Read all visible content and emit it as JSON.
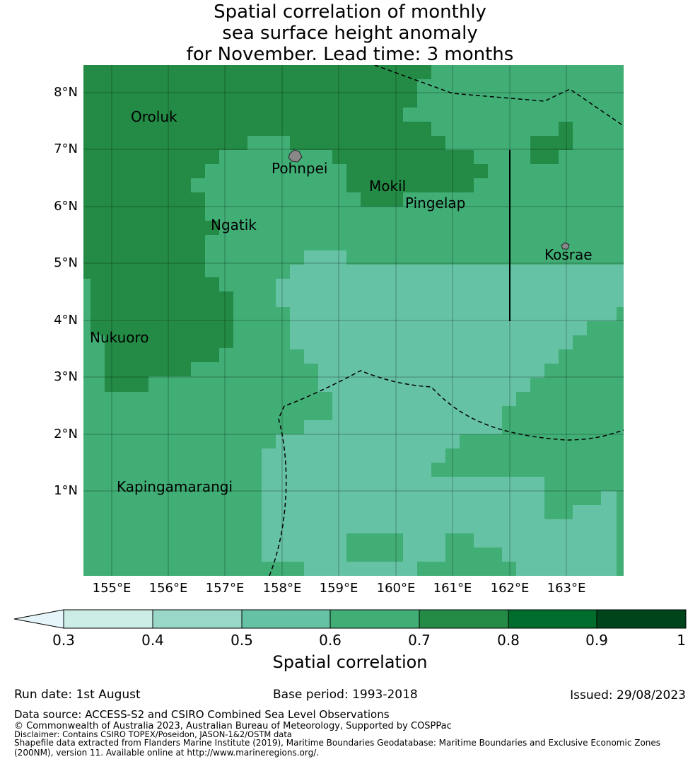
{
  "title_lines": [
    "Spatial correlation of monthly",
    "sea surface height anomaly",
    "for November. Lead time: 3 months"
  ],
  "lat_labels": [
    "8°N",
    "7°N",
    "6°N",
    "5°N",
    "4°N",
    "3°N",
    "2°N",
    "1°N"
  ],
  "lon_labels": [
    "155°E",
    "156°E",
    "157°E",
    "158°E",
    "159°E",
    "160°E",
    "161°E",
    "162°E",
    "163°E"
  ],
  "places": {
    "oroluk": "Oroluk",
    "pohnpei": "Pohnpei",
    "mokil": "Mokil",
    "pingelap": "Pingelap",
    "ngatik": "Ngatik",
    "kosrae": "Kosrae",
    "nukuoro": "Nukuoro",
    "kapingamarangi": "Kapingamarangi"
  },
  "colorbar": {
    "label": "Spatial correlation",
    "ticks": [
      "0.3",
      "0.4",
      "0.5",
      "0.6",
      "0.7",
      "0.8",
      "0.9",
      "1"
    ],
    "extend_color": "#e5f5f9",
    "colors": [
      "#ccece6",
      "#99d8c9",
      "#66c2a4",
      "#41ae76",
      "#238b45",
      "#006d2c",
      "#00441b"
    ]
  },
  "meta": {
    "run_date": "Run date: 1st August",
    "base_period": "Base period: 1993-2018",
    "issued": "Issued: 29/08/2023"
  },
  "footer": {
    "data_source": "Data source: ACCESS-S2 and CSIRO Combined Sea Level Observations",
    "copyright": "© Commonwealth of Australia 2023, Australian Bureau of Meteorology, Supported by COSPPac",
    "disclaimer": "Disclaimer: Contains CSIRO TOPEX/Poseidon, JASON-1&2/OSTM data",
    "shapefile_1": "Shapefile data extracted from Flanders Marine Institute (2019), Maritime Boundaries Geodatabase: Maritime Boundaries and Exclusive Economic Zones",
    "shapefile_2": "(200NM), version 11. Available online at http://www.marineregions.org/."
  }
}
